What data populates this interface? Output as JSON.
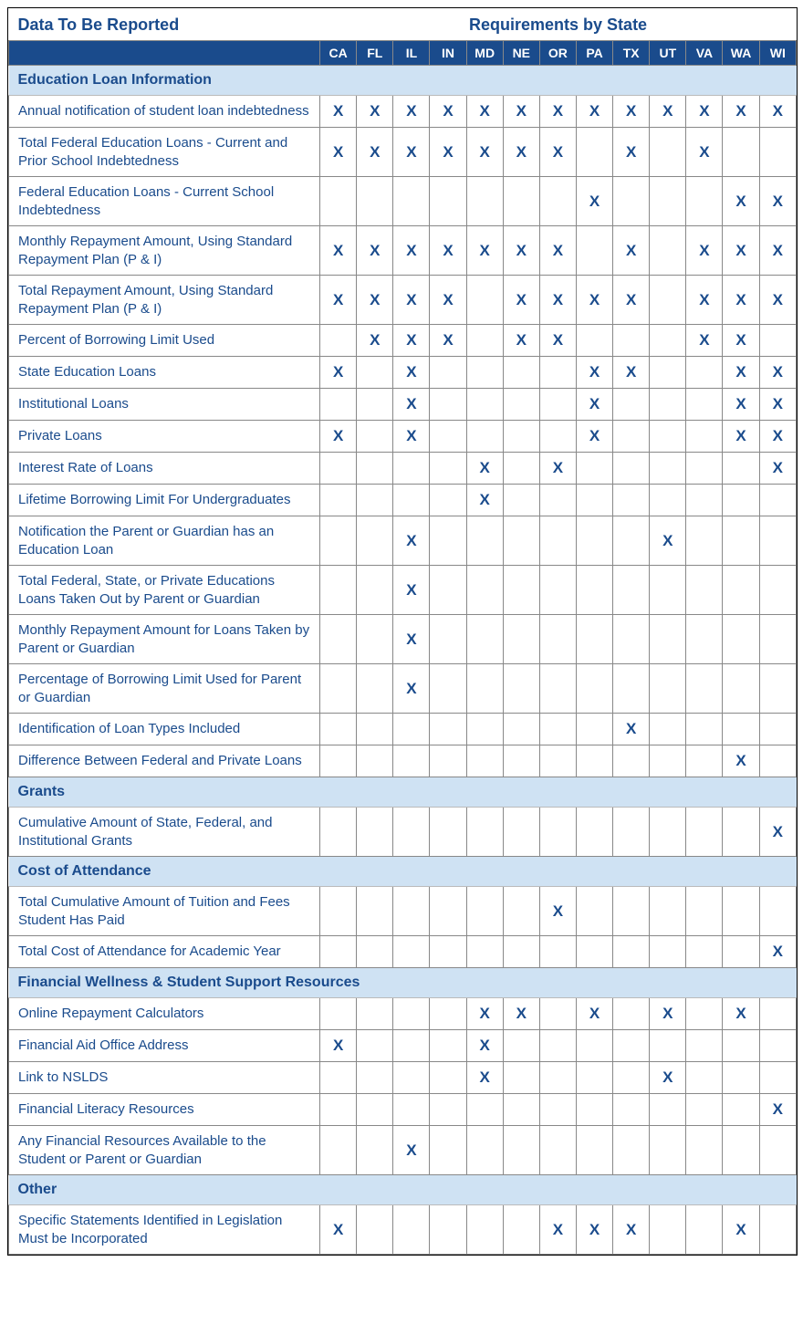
{
  "header": {
    "left_title": "Data To Be Reported",
    "right_title": "Requirements by State"
  },
  "states": [
    "CA",
    "FL",
    "IL",
    "IN",
    "MD",
    "NE",
    "OR",
    "PA",
    "TX",
    "UT",
    "VA",
    "WA",
    "WI"
  ],
  "mark_symbol": "X",
  "colors": {
    "header_text": "#1a4b8c",
    "state_header_bg": "#1a4b8c",
    "state_header_text": "#ffffff",
    "section_bg": "#cfe2f3",
    "section_text": "#1a4b8c",
    "mark_color": "#1a4b8c",
    "border_color": "#888888"
  },
  "sections": [
    {
      "title": "Education Loan Information",
      "rows": [
        {
          "label": "Annual notification of student loan indebtedness",
          "marks": [
            1,
            1,
            1,
            1,
            1,
            1,
            1,
            1,
            1,
            1,
            1,
            1,
            1
          ]
        },
        {
          "label": "Total Federal Education Loans - Current and Prior School Indebtedness",
          "marks": [
            1,
            1,
            1,
            1,
            1,
            1,
            1,
            0,
            1,
            0,
            1,
            0,
            0
          ]
        },
        {
          "label": "Federal Education Loans - Current School Indebtedness",
          "marks": [
            0,
            0,
            0,
            0,
            0,
            0,
            0,
            1,
            0,
            0,
            0,
            1,
            1
          ]
        },
        {
          "label": "Monthly Repayment Amount, Using Standard Repayment Plan (P & I)",
          "marks": [
            1,
            1,
            1,
            1,
            1,
            1,
            1,
            0,
            1,
            0,
            1,
            1,
            1
          ]
        },
        {
          "label": "Total Repayment Amount, Using Standard Repayment Plan (P & I)",
          "marks": [
            1,
            1,
            1,
            1,
            0,
            1,
            1,
            1,
            1,
            0,
            1,
            1,
            1
          ]
        },
        {
          "label": "Percent of Borrowing Limit Used",
          "marks": [
            0,
            1,
            1,
            1,
            0,
            1,
            1,
            0,
            0,
            0,
            1,
            1,
            0
          ]
        },
        {
          "label": "State Education Loans",
          "marks": [
            1,
            0,
            1,
            0,
            0,
            0,
            0,
            1,
            1,
            0,
            0,
            1,
            1
          ]
        },
        {
          "label": "Institutional Loans",
          "marks": [
            0,
            0,
            1,
            0,
            0,
            0,
            0,
            1,
            0,
            0,
            0,
            1,
            1
          ]
        },
        {
          "label": "Private Loans",
          "marks": [
            1,
            0,
            1,
            0,
            0,
            0,
            0,
            1,
            0,
            0,
            0,
            1,
            1
          ]
        },
        {
          "label": "Interest Rate of Loans",
          "marks": [
            0,
            0,
            0,
            0,
            1,
            0,
            1,
            0,
            0,
            0,
            0,
            0,
            1
          ]
        },
        {
          "label": "Lifetime Borrowing Limit For Undergraduates",
          "marks": [
            0,
            0,
            0,
            0,
            1,
            0,
            0,
            0,
            0,
            0,
            0,
            0,
            0
          ]
        },
        {
          "label": "Notification the Parent or Guardian has an Education Loan",
          "marks": [
            0,
            0,
            1,
            0,
            0,
            0,
            0,
            0,
            0,
            1,
            0,
            0,
            0
          ]
        },
        {
          "label": "Total Federal, State, or Private Educations Loans Taken Out by Parent or Guardian",
          "marks": [
            0,
            0,
            1,
            0,
            0,
            0,
            0,
            0,
            0,
            0,
            0,
            0,
            0
          ]
        },
        {
          "label": "Monthly Repayment Amount for Loans Taken by Parent or Guardian",
          "marks": [
            0,
            0,
            1,
            0,
            0,
            0,
            0,
            0,
            0,
            0,
            0,
            0,
            0
          ]
        },
        {
          "label": "Percentage of Borrowing Limit Used for Parent or Guardian",
          "marks": [
            0,
            0,
            1,
            0,
            0,
            0,
            0,
            0,
            0,
            0,
            0,
            0,
            0
          ]
        },
        {
          "label": "Identification of Loan Types Included",
          "marks": [
            0,
            0,
            0,
            0,
            0,
            0,
            0,
            0,
            1,
            0,
            0,
            0,
            0
          ]
        },
        {
          "label": "Difference Between Federal and Private Loans",
          "marks": [
            0,
            0,
            0,
            0,
            0,
            0,
            0,
            0,
            0,
            0,
            0,
            1,
            0
          ]
        }
      ]
    },
    {
      "title": "Grants",
      "rows": [
        {
          "label": "Cumulative Amount of State, Federal, and Institutional Grants",
          "marks": [
            0,
            0,
            0,
            0,
            0,
            0,
            0,
            0,
            0,
            0,
            0,
            0,
            1
          ]
        }
      ]
    },
    {
      "title": "Cost of Attendance",
      "rows": [
        {
          "label": "Total Cumulative Amount of Tuition and Fees Student Has Paid",
          "marks": [
            0,
            0,
            0,
            0,
            0,
            0,
            1,
            0,
            0,
            0,
            0,
            0,
            0
          ]
        },
        {
          "label": "Total Cost of Attendance for Academic Year",
          "marks": [
            0,
            0,
            0,
            0,
            0,
            0,
            0,
            0,
            0,
            0,
            0,
            0,
            1
          ]
        }
      ]
    },
    {
      "title": "Financial Wellness & Student Support Resources",
      "rows": [
        {
          "label": "Online Repayment Calculators",
          "marks": [
            0,
            0,
            0,
            0,
            1,
            1,
            0,
            1,
            0,
            1,
            0,
            1,
            0
          ]
        },
        {
          "label": "Financial Aid Office Address",
          "marks": [
            1,
            0,
            0,
            0,
            1,
            0,
            0,
            0,
            0,
            0,
            0,
            0,
            0
          ]
        },
        {
          "label": "Link to NSLDS",
          "marks": [
            0,
            0,
            0,
            0,
            1,
            0,
            0,
            0,
            0,
            1,
            0,
            0,
            0
          ]
        },
        {
          "label": "Financial Literacy Resources",
          "marks": [
            0,
            0,
            0,
            0,
            0,
            0,
            0,
            0,
            0,
            0,
            0,
            0,
            1
          ]
        },
        {
          "label": "Any Financial Resources Available to the Student or Parent or Guardian",
          "marks": [
            0,
            0,
            1,
            0,
            0,
            0,
            0,
            0,
            0,
            0,
            0,
            0,
            0
          ]
        }
      ]
    },
    {
      "title": "Other",
      "rows": [
        {
          "label": "Specific Statements Identified in Legislation Must be Incorporated",
          "marks": [
            1,
            0,
            0,
            0,
            0,
            0,
            1,
            1,
            1,
            0,
            0,
            1,
            0
          ]
        }
      ]
    }
  ]
}
